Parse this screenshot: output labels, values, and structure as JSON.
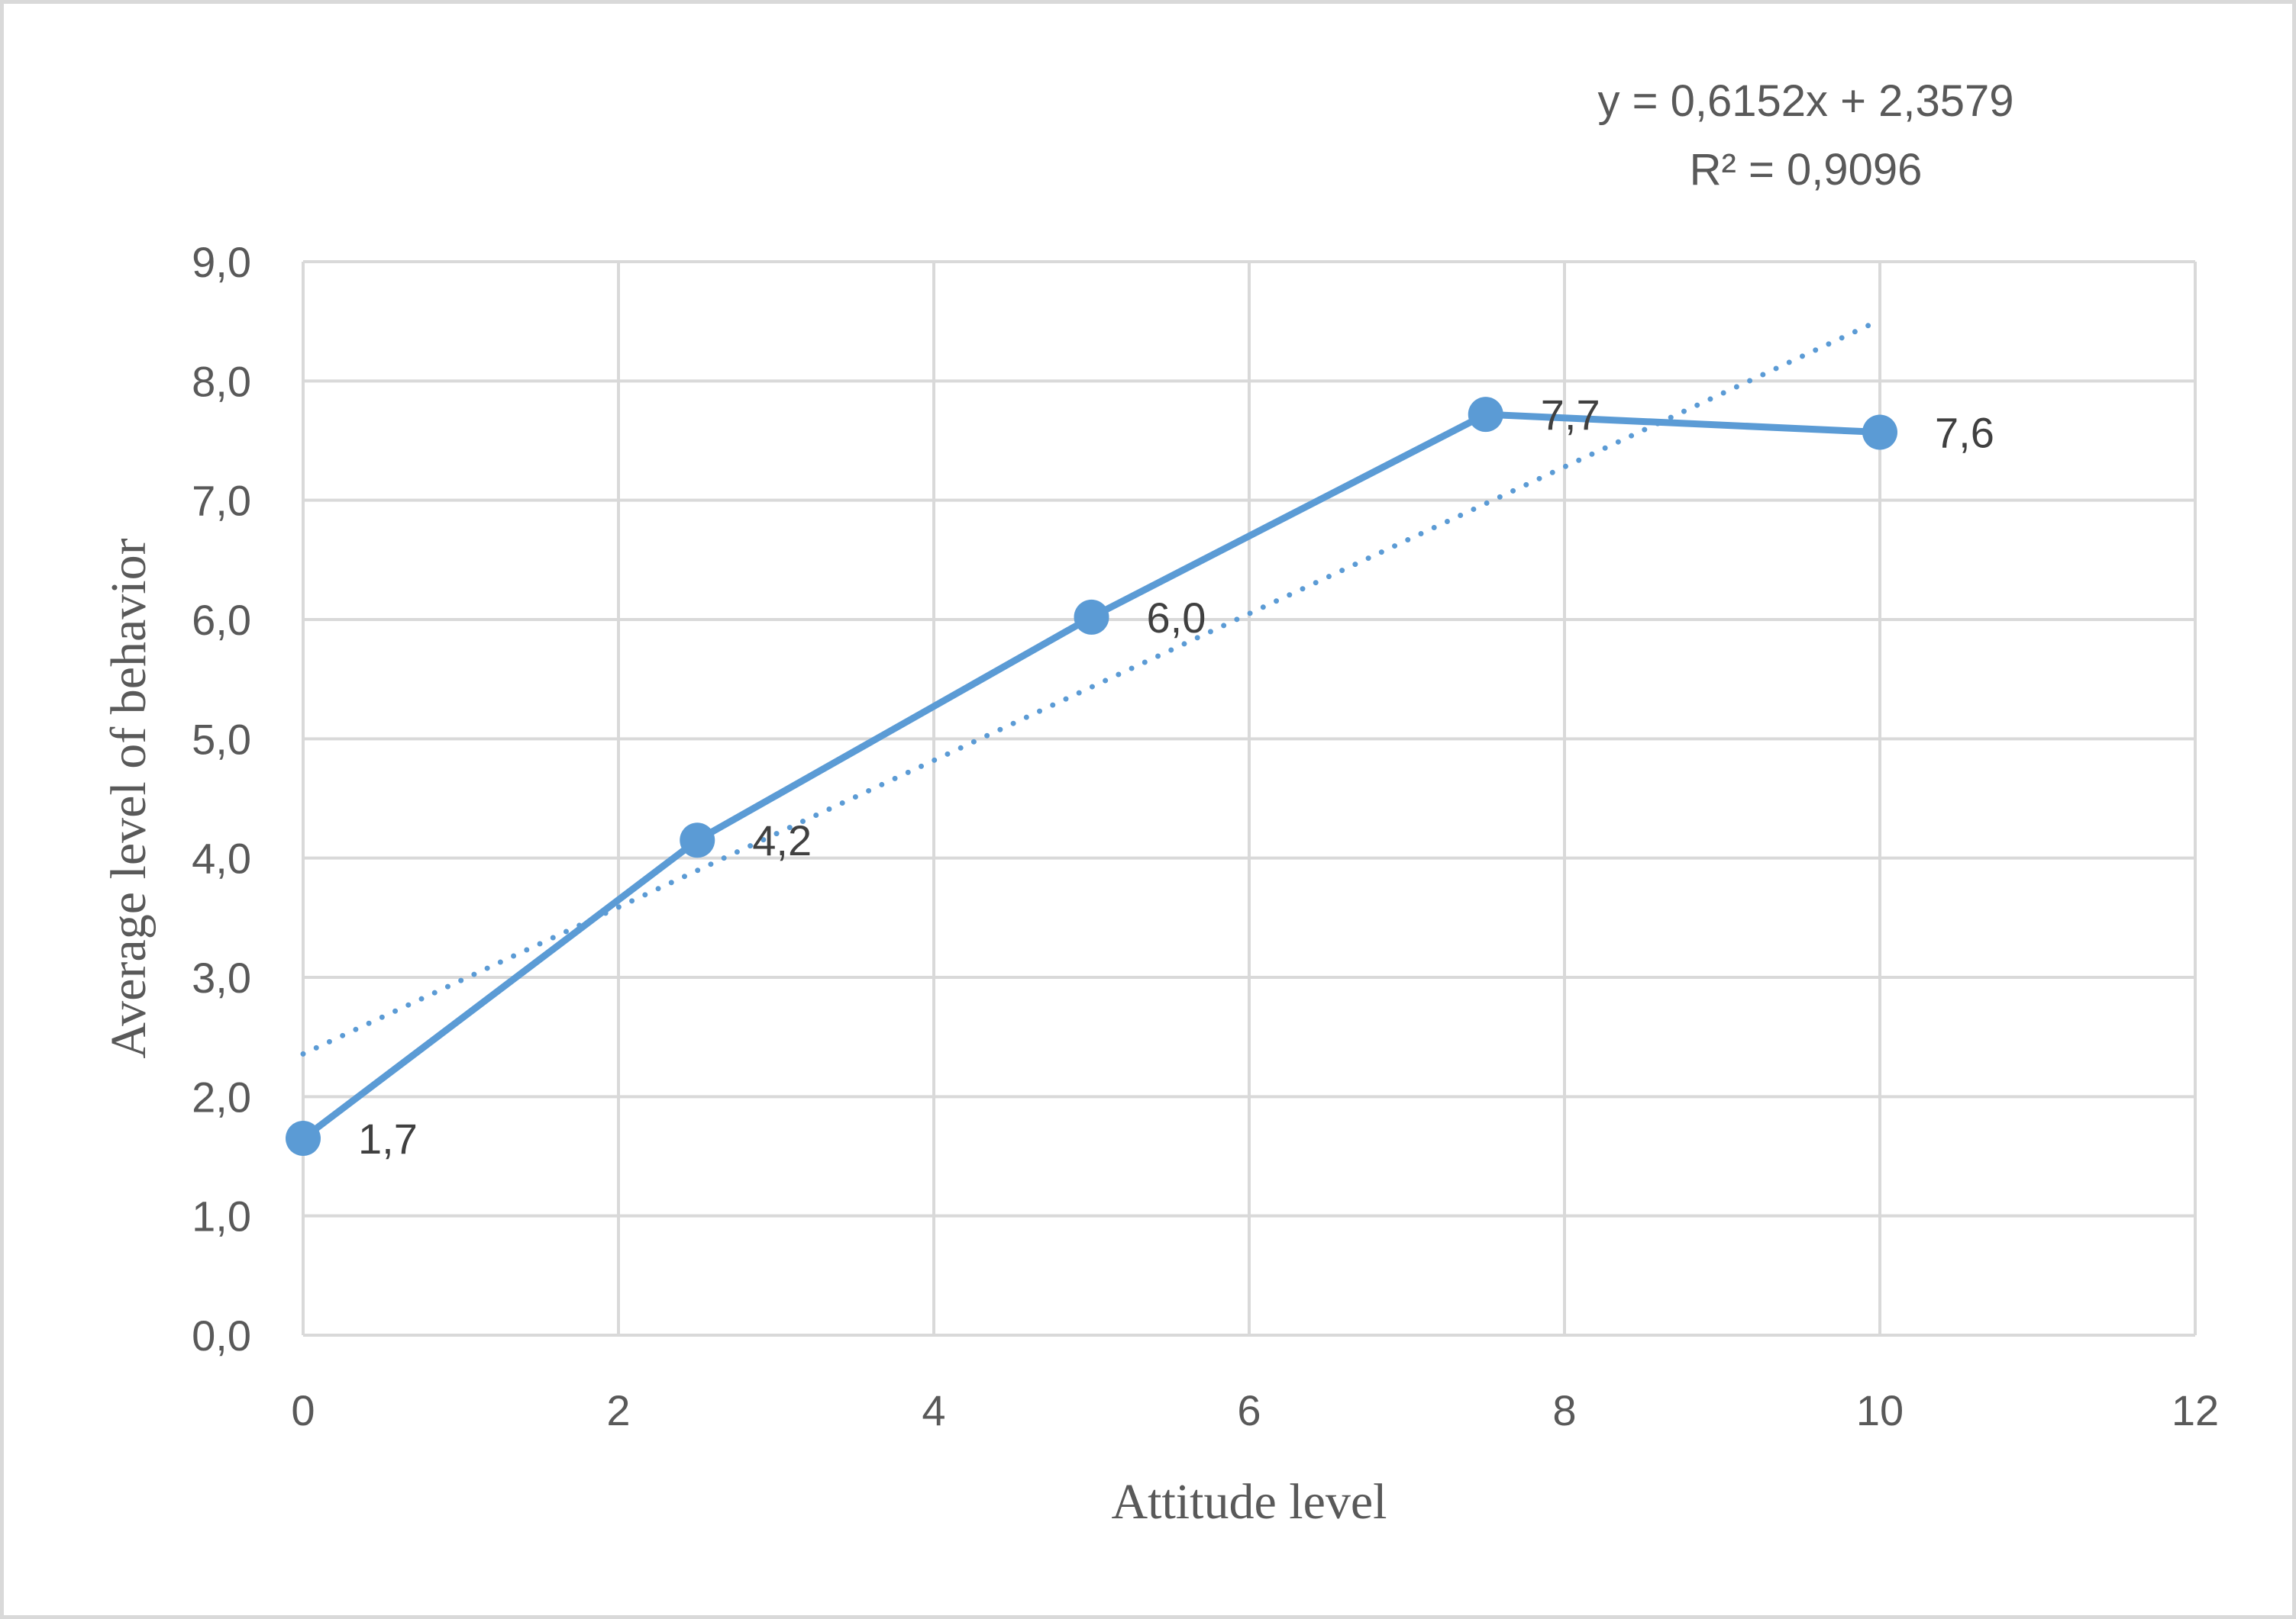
{
  "chart_data": {
    "type": "line",
    "xlabel": "Attitude level",
    "ylabel": "Average level of behavior",
    "xlim": [
      0,
      12
    ],
    "ylim": [
      0,
      9
    ],
    "x_ticks": [
      0,
      2,
      4,
      6,
      8,
      10,
      12
    ],
    "y_ticks": [
      "0,0",
      "1,0",
      "2,0",
      "3,0",
      "4,0",
      "5,0",
      "6,0",
      "7,0",
      "8,0",
      "9,0"
    ],
    "grid": true,
    "legend": "none",
    "series": [
      {
        "x": [
          0,
          2.5,
          5,
          7.5,
          10
        ],
        "y": [
          1.65,
          4.15,
          6.02,
          7.72,
          7.57
        ],
        "data_labels": [
          "1,7",
          "4,2",
          "6,0",
          "7,7",
          "7,6"
        ],
        "color": "#5b9bd5",
        "marker": "circle"
      }
    ],
    "trendline": {
      "type": "linear",
      "slope": 0.6152,
      "intercept": 2.3579,
      "style": "dotted",
      "color": "#5b9bd5",
      "equation": "y = 0,6152x + 2,3579",
      "r_squared": "R² = 0,9096"
    }
  }
}
